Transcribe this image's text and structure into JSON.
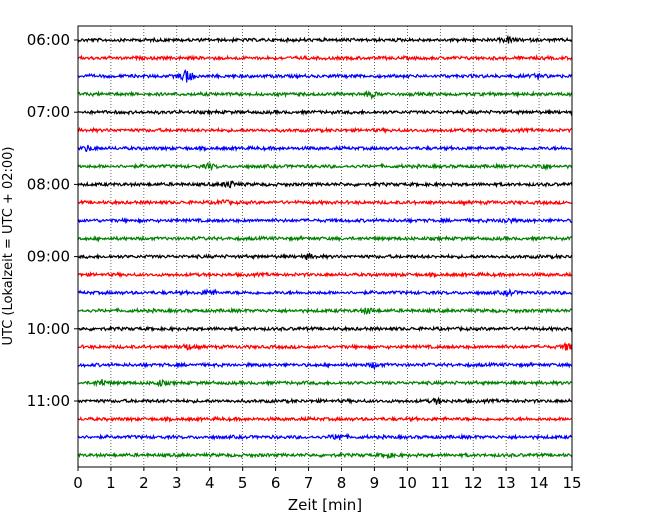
{
  "chart_data": {
    "type": "line",
    "title": "",
    "xlabel": "Zeit  [min]",
    "ylabel": "UTC (Lokalzeit = UTC + 02:00)",
    "xlim": [
      0,
      15
    ],
    "x_ticks": [
      "0",
      "1",
      "2",
      "3",
      "4",
      "5",
      "6",
      "7",
      "8",
      "9",
      "10",
      "11",
      "12",
      "13",
      "14",
      "15"
    ],
    "y_ticks": [
      {
        "label": "06:00",
        "trace": 0
      },
      {
        "label": "07:00",
        "trace": 4
      },
      {
        "label": "08:00",
        "trace": 8
      },
      {
        "label": "09:00",
        "trace": 12
      },
      {
        "label": "10:00",
        "trace": 16
      },
      {
        "label": "11:00",
        "trace": 20
      }
    ],
    "grid": "vertical dotted at each minute",
    "trace_interval_min": 15,
    "color_cycle": [
      "#000000",
      "#ff0000",
      "#0000ff",
      "#008000"
    ],
    "series": [
      {
        "start": "06:00",
        "color": "#000000",
        "events": [
          {
            "x": 13.1,
            "amp": 0.35
          }
        ]
      },
      {
        "start": "06:15",
        "color": "#ff0000",
        "events": []
      },
      {
        "start": "06:30",
        "color": "#0000ff",
        "events": [
          {
            "x": 3.3,
            "amp": 1.0
          },
          {
            "x": 14.0,
            "amp": 0.3
          }
        ]
      },
      {
        "start": "06:45",
        "color": "#008000",
        "events": [
          {
            "x": 8.9,
            "amp": 0.35
          }
        ]
      },
      {
        "start": "07:00",
        "color": "#000000",
        "events": []
      },
      {
        "start": "07:15",
        "color": "#ff0000",
        "events": []
      },
      {
        "start": "07:30",
        "color": "#0000ff",
        "events": [
          {
            "x": 0.3,
            "amp": 0.35
          }
        ]
      },
      {
        "start": "07:45",
        "color": "#008000",
        "events": [
          {
            "x": 4.0,
            "amp": 0.3
          },
          {
            "x": 14.1,
            "amp": 0.3
          }
        ]
      },
      {
        "start": "08:00",
        "color": "#000000",
        "events": [
          {
            "x": 4.6,
            "amp": 0.45
          }
        ]
      },
      {
        "start": "08:15",
        "color": "#ff0000",
        "events": [
          {
            "x": 4.4,
            "amp": 0.3
          }
        ]
      },
      {
        "start": "08:30",
        "color": "#0000ff",
        "events": [
          {
            "x": 13.0,
            "amp": 0.35
          }
        ]
      },
      {
        "start": "08:45",
        "color": "#008000",
        "events": []
      },
      {
        "start": "09:00",
        "color": "#000000",
        "events": [
          {
            "x": 7.0,
            "amp": 0.3
          }
        ]
      },
      {
        "start": "09:15",
        "color": "#ff0000",
        "events": []
      },
      {
        "start": "09:30",
        "color": "#0000ff",
        "events": [
          {
            "x": 4.0,
            "amp": 0.35
          },
          {
            "x": 13.1,
            "amp": 0.3
          }
        ]
      },
      {
        "start": "09:45",
        "color": "#008000",
        "events": [
          {
            "x": 8.8,
            "amp": 0.4
          }
        ]
      },
      {
        "start": "10:00",
        "color": "#000000",
        "events": []
      },
      {
        "start": "10:15",
        "color": "#ff0000",
        "events": [
          {
            "x": 3.3,
            "amp": 0.35
          },
          {
            "x": 14.9,
            "amp": 0.6
          }
        ]
      },
      {
        "start": "10:30",
        "color": "#0000ff",
        "events": [
          {
            "x": 9.0,
            "amp": 0.3
          }
        ]
      },
      {
        "start": "10:45",
        "color": "#008000",
        "events": [
          {
            "x": 0.7,
            "amp": 0.45
          },
          {
            "x": 2.5,
            "amp": 0.3
          }
        ]
      },
      {
        "start": "11:00",
        "color": "#000000",
        "events": [
          {
            "x": 10.9,
            "amp": 0.3
          }
        ]
      },
      {
        "start": "11:15",
        "color": "#ff0000",
        "events": []
      },
      {
        "start": "11:30",
        "color": "#0000ff",
        "events": [
          {
            "x": 7.9,
            "amp": 0.5
          }
        ]
      },
      {
        "start": "11:45",
        "color": "#008000",
        "events": [
          {
            "x": 9.4,
            "amp": 0.3
          }
        ]
      }
    ]
  }
}
